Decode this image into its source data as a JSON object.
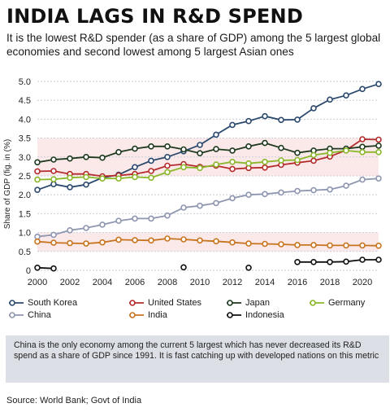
{
  "title": "INDIA LAGS IN R&D SPEND",
  "subtitle": "It is the lowest R&D spender (as a share of GDP) among the 5 largest global economies and second lowest among 5 largest Asian ones",
  "note": "China is the only economy among the current 5 largest which has never decreased its R&D spend as a share of GDP since 1991. It is fast catching up with developed nations on this metric",
  "source": "Source: World Bank; Govt of India",
  "chart_data": {
    "type": "line",
    "title": "INDIA LAGS IN R&D SPEND",
    "xlabel": "",
    "ylabel": "Share of GDP (fig. in (%)",
    "xlim": [
      2000,
      2021
    ],
    "ylim": [
      0,
      5.0
    ],
    "xticks": [
      "2000",
      "2002",
      "2004",
      "2006",
      "2008",
      "2010",
      "2012",
      "2014",
      "2016",
      "2018",
      "2020"
    ],
    "yticks": [
      "0",
      "0.5",
      "1.0",
      "1.5",
      "2.0",
      "2.5",
      "3.0",
      "3.5",
      "4.0",
      "4.5",
      "5.0"
    ],
    "grid": true,
    "legend_position": "bottom",
    "x": [
      2000,
      2001,
      2002,
      2003,
      2004,
      2005,
      2006,
      2007,
      2008,
      2009,
      2010,
      2011,
      2012,
      2013,
      2014,
      2015,
      2016,
      2017,
      2018,
      2019,
      2020,
      2021
    ],
    "series": [
      {
        "name": "South Korea",
        "color": "#2c4a6e",
        "values": [
          2.13,
          2.28,
          2.2,
          2.27,
          2.45,
          2.53,
          2.73,
          2.9,
          3.0,
          3.15,
          3.32,
          3.59,
          3.85,
          3.95,
          4.08,
          3.98,
          3.99,
          4.29,
          4.52,
          4.63,
          4.8,
          4.93
        ]
      },
      {
        "name": "United States",
        "color": "#b42c2c",
        "values": [
          2.62,
          2.63,
          2.55,
          2.55,
          2.49,
          2.51,
          2.55,
          2.63,
          2.77,
          2.81,
          2.74,
          2.77,
          2.68,
          2.71,
          2.72,
          2.79,
          2.85,
          2.9,
          3.01,
          3.18,
          3.47,
          3.46
        ]
      },
      {
        "name": "Japan",
        "color": "#1e3a1e",
        "values": [
          2.86,
          2.93,
          2.96,
          3.0,
          2.98,
          3.13,
          3.22,
          3.28,
          3.28,
          3.2,
          3.1,
          3.21,
          3.17,
          3.28,
          3.37,
          3.24,
          3.11,
          3.17,
          3.22,
          3.22,
          3.27,
          3.3
        ]
      },
      {
        "name": "Germany",
        "color": "#8ab82a",
        "values": [
          2.4,
          2.41,
          2.45,
          2.47,
          2.43,
          2.43,
          2.47,
          2.45,
          2.6,
          2.73,
          2.71,
          2.8,
          2.87,
          2.83,
          2.87,
          2.91,
          2.92,
          3.05,
          3.11,
          3.17,
          3.13,
          3.13
        ]
      },
      {
        "name": "China",
        "color": "#8e96b0",
        "values": [
          0.89,
          0.94,
          1.06,
          1.12,
          1.21,
          1.31,
          1.37,
          1.37,
          1.45,
          1.66,
          1.71,
          1.78,
          1.91,
          2.0,
          2.02,
          2.06,
          2.1,
          2.12,
          2.14,
          2.24,
          2.4,
          2.43
        ]
      },
      {
        "name": "India",
        "color": "#c8741e",
        "values": [
          0.76,
          0.73,
          0.72,
          0.71,
          0.74,
          0.81,
          0.8,
          0.79,
          0.84,
          0.82,
          0.79,
          0.77,
          0.74,
          0.71,
          0.7,
          0.69,
          0.67,
          0.67,
          0.66,
          0.66,
          0.66,
          0.65
        ]
      },
      {
        "name": "Indonesia",
        "color": "#111111",
        "values": [
          0.07,
          0.05,
          null,
          null,
          null,
          null,
          null,
          null,
          null,
          0.08,
          null,
          null,
          null,
          0.07,
          null,
          null,
          0.22,
          0.22,
          0.22,
          0.23,
          0.28,
          0.28
        ]
      }
    ]
  }
}
